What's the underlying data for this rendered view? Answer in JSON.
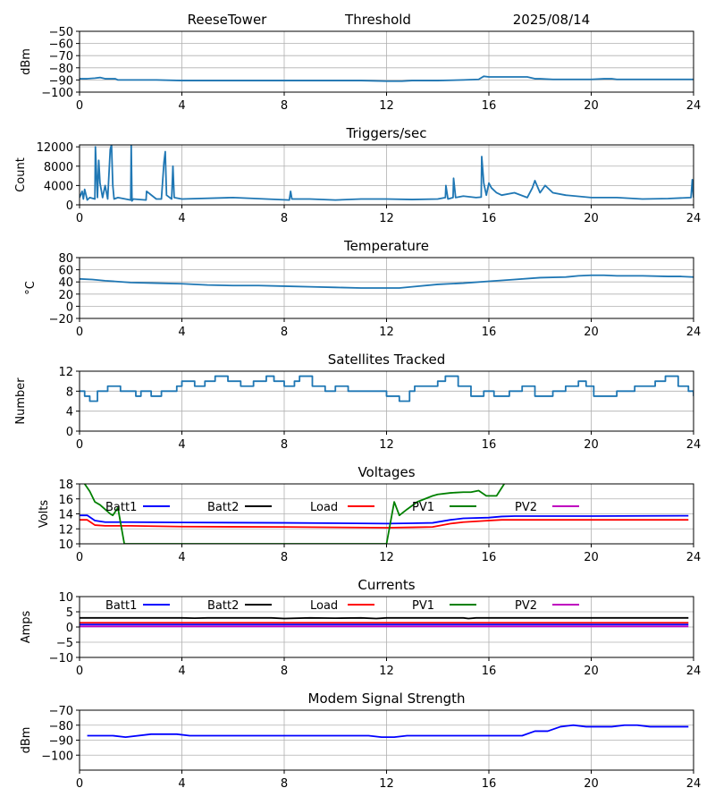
{
  "header": {
    "station": "ReeseTower",
    "mode": "Threshold",
    "date": "2025/08/14"
  },
  "chart_data": [
    {
      "type": "line",
      "name": "signal-threshold",
      "title": "",
      "ylabel": "dBm",
      "xlim": [
        0,
        24
      ],
      "ylim": [
        -100,
        -50
      ],
      "grid": true,
      "xticks": [
        "0",
        "4",
        "8",
        "12",
        "16",
        "20",
        "24"
      ],
      "yticks": [
        "−50",
        "−60",
        "−70",
        "−80",
        "−90",
        "−100"
      ],
      "ytick_values": [
        -50,
        -60,
        -70,
        -80,
        -90,
        -100
      ],
      "series": [
        {
          "name": "Threshold",
          "color": "#1f77b4",
          "x": [
            0,
            0.3,
            0.6,
            0.8,
            1.0,
            1.4,
            1.5,
            2,
            3,
            4,
            6,
            8,
            10,
            11,
            12,
            12.6,
            13,
            14,
            15,
            15.6,
            15.8,
            16,
            16.5,
            17,
            17.5,
            17.8,
            18,
            18.5,
            19,
            19.5,
            20,
            20.5,
            20.8,
            21,
            22,
            23,
            24
          ],
          "y": [
            -89,
            -89,
            -88.5,
            -88,
            -89,
            -89,
            -90,
            -90,
            -90,
            -90.5,
            -90.5,
            -90.5,
            -90.5,
            -90.5,
            -91,
            -91,
            -90.5,
            -90.5,
            -90,
            -89.5,
            -87,
            -87.5,
            -87.5,
            -87.5,
            -87.5,
            -89,
            -89,
            -89.5,
            -89.5,
            -89.5,
            -89.5,
            -89,
            -89,
            -89.5,
            -89.5,
            -89.5,
            -89.5
          ]
        }
      ]
    },
    {
      "type": "line",
      "name": "triggers",
      "title": "Triggers/sec",
      "ylabel": "Count",
      "xlim": [
        0,
        24
      ],
      "ylim": [
        0,
        12400
      ],
      "grid": true,
      "xticks": [
        "0",
        "4",
        "8",
        "12",
        "16",
        "20",
        "24"
      ],
      "yticks": [
        "12000",
        "8000",
        "4000",
        "0"
      ],
      "ytick_values": [
        12000,
        8000,
        4000,
        0
      ],
      "series": [
        {
          "name": "Triggers",
          "color": "#1f77b4",
          "x": [
            0,
            0.1,
            0.15,
            0.2,
            0.3,
            0.4,
            0.6,
            0.62,
            0.7,
            0.75,
            0.8,
            0.9,
            1.0,
            1.1,
            1.2,
            1.25,
            1.3,
            1.35,
            1.5,
            2.0,
            2.02,
            2.05,
            2.1,
            2.6,
            2.62,
            3.0,
            3.2,
            3.3,
            3.35,
            3.4,
            3.6,
            3.65,
            3.7,
            4.0,
            6.0,
            8.2,
            8.25,
            8.3,
            9.0,
            10,
            11,
            12,
            13,
            14,
            14.3,
            14.32,
            14.4,
            14.6,
            14.62,
            14.7,
            15,
            15.5,
            15.7,
            15.72,
            15.8,
            15.9,
            16,
            16.1,
            16.3,
            16.5,
            17,
            17.5,
            17.7,
            17.8,
            18,
            18.2,
            18.5,
            19,
            20,
            20.5,
            21,
            22,
            23,
            23.9,
            23.95,
            24
          ],
          "y": [
            1500,
            2800,
            1200,
            3200,
            1000,
            1500,
            1200,
            12000,
            1500,
            9200,
            4500,
            1500,
            4000,
            1200,
            11500,
            12400,
            4000,
            1200,
            1500,
            1000,
            12400,
            800,
            1200,
            1000,
            2800,
            1200,
            1200,
            8800,
            11000,
            2000,
            1200,
            8000,
            1500,
            1200,
            1500,
            1000,
            2800,
            1200,
            1200,
            1000,
            1200,
            1200,
            1100,
            1200,
            1500,
            4000,
            1200,
            1500,
            5500,
            1500,
            1800,
            1500,
            1600,
            10000,
            4500,
            2000,
            4500,
            3500,
            2500,
            2000,
            2500,
            1500,
            3500,
            5000,
            2500,
            4000,
            2500,
            2000,
            1500,
            1500,
            1500,
            1200,
            1300,
            1500,
            5200,
            1500
          ]
        }
      ]
    },
    {
      "type": "line",
      "name": "temperature",
      "title": "Temperature",
      "ylabel": "°C",
      "xlim": [
        0,
        24
      ],
      "ylim": [
        -20,
        80
      ],
      "grid": true,
      "xticks": [
        "0",
        "4",
        "8",
        "12",
        "16",
        "20",
        "24"
      ],
      "yticks": [
        "80",
        "60",
        "40",
        "20",
        "0",
        "−20"
      ],
      "ytick_values": [
        80,
        60,
        40,
        20,
        0,
        -20
      ],
      "series": [
        {
          "name": "Temperature",
          "color": "#1f77b4",
          "x": [
            0,
            0.5,
            1,
            2,
            3,
            4,
            5,
            6,
            7,
            8,
            9,
            10,
            11,
            12,
            12.5,
            13,
            14,
            15,
            16,
            17,
            18,
            19,
            19.5,
            20,
            20.5,
            21,
            22,
            23,
            23.5,
            24
          ],
          "y": [
            45,
            44,
            42,
            39,
            38,
            37,
            35,
            34,
            34,
            33,
            32,
            31,
            30,
            30,
            30,
            32,
            36,
            38,
            41,
            44,
            47,
            48,
            50,
            51,
            51,
            50,
            50,
            49,
            49,
            48
          ]
        }
      ]
    },
    {
      "type": "line",
      "name": "satellites",
      "title": "Satellites Tracked",
      "ylabel": "Number",
      "xlim": [
        0,
        24
      ],
      "ylim": [
        0,
        12
      ],
      "grid": true,
      "xticks": [
        "0",
        "4",
        "8",
        "12",
        "16",
        "20",
        "24"
      ],
      "yticks": [
        "12",
        "8",
        "4",
        "0"
      ],
      "ytick_values": [
        12,
        8,
        4,
        0
      ],
      "series": [
        {
          "name": "Satellites",
          "color": "#1f77b4",
          "step": true,
          "x": [
            0,
            0.2,
            0.4,
            0.7,
            1.1,
            1.6,
            2.2,
            2.4,
            2.8,
            3.2,
            3.8,
            4.0,
            4.5,
            4.9,
            5.3,
            5.8,
            6.3,
            6.8,
            7.3,
            7.6,
            8.0,
            8.4,
            8.6,
            9.1,
            9.6,
            10.0,
            10.5,
            11.5,
            12.0,
            12.5,
            12.9,
            13.1,
            13.5,
            14.0,
            14.3,
            14.8,
            15.3,
            15.8,
            16.2,
            16.8,
            17.3,
            17.8,
            18.5,
            19.0,
            19.5,
            19.8,
            20.1,
            21.0,
            21.7,
            22.3,
            22.5,
            22.9,
            23.4,
            23.8,
            24
          ],
          "y": [
            8,
            7,
            6,
            8,
            9,
            8,
            7,
            8,
            7,
            8,
            9,
            10,
            9,
            10,
            11,
            10,
            9,
            10,
            11,
            10,
            9,
            10,
            11,
            9,
            8,
            9,
            8,
            8,
            7,
            6,
            8,
            9,
            9,
            10,
            11,
            9,
            7,
            8,
            7,
            8,
            9,
            7,
            8,
            9,
            10,
            9,
            7,
            8,
            9,
            9,
            10,
            11,
            9,
            8,
            7
          ]
        }
      ]
    },
    {
      "type": "line",
      "name": "voltages",
      "title": "Voltages",
      "ylabel": "Volts",
      "xlim": [
        0,
        24
      ],
      "ylim": [
        10,
        18
      ],
      "grid": true,
      "xticks": [
        "0",
        "4",
        "8",
        "12",
        "16",
        "20",
        "24"
      ],
      "yticks": [
        "18",
        "16",
        "14",
        "12",
        "10"
      ],
      "ytick_values": [
        18,
        16,
        14,
        12,
        10
      ],
      "legend": [
        "Batt1",
        "Batt2",
        "Load",
        "PV1",
        "PV2"
      ],
      "series": [
        {
          "name": "Batt1",
          "color": "#0000ff",
          "x": [
            0,
            0.3,
            0.6,
            1,
            2,
            4,
            8,
            12,
            13,
            13.8,
            14.5,
            15,
            16,
            16.5,
            17,
            20,
            23.8
          ],
          "y": [
            13.8,
            13.8,
            13.1,
            12.9,
            12.9,
            12.85,
            12.8,
            12.7,
            12.75,
            12.8,
            13.2,
            13.4,
            13.5,
            13.65,
            13.7,
            13.7,
            13.75
          ]
        },
        {
          "name": "Load",
          "color": "#ff0000",
          "x": [
            0,
            0.3,
            0.6,
            1,
            2,
            4,
            8,
            12,
            13,
            13.8,
            14.5,
            15,
            16,
            16.5,
            17,
            20,
            23.8
          ],
          "y": [
            13.2,
            13.2,
            12.5,
            12.4,
            12.4,
            12.3,
            12.25,
            12.15,
            12.2,
            12.25,
            12.7,
            12.9,
            13.1,
            13.2,
            13.2,
            13.2,
            13.2
          ]
        },
        {
          "name": "PV1",
          "color": "#008000",
          "x": [
            0.2,
            0.4,
            0.6,
            0.8,
            1.0,
            1.2,
            1.3,
            1.5,
            1.75,
            12.0,
            12.3,
            12.5,
            12.8,
            13.2,
            13.8,
            14.0,
            14.5,
            15.0,
            15.3,
            15.6,
            15.9,
            16.3,
            16.6
          ],
          "y": [
            18,
            17,
            15.6,
            15.2,
            14.6,
            14.0,
            13.8,
            14.8,
            10.0,
            10.0,
            15.6,
            13.8,
            14.6,
            15.6,
            16.4,
            16.6,
            16.8,
            16.9,
            16.9,
            17.1,
            16.4,
            16.4,
            18.0
          ]
        },
        {
          "name": "Batt2",
          "color": "#000000",
          "x": [],
          "y": []
        },
        {
          "name": "PV2",
          "color": "#bf00bf",
          "x": [],
          "y": []
        }
      ]
    },
    {
      "type": "line",
      "name": "currents",
      "title": "Currents",
      "ylabel": "Amps",
      "xlim": [
        0,
        24
      ],
      "ylim": [
        -10,
        10
      ],
      "grid": true,
      "xticks": [
        "0",
        "4",
        "8",
        "12",
        "16",
        "20",
        "24"
      ],
      "yticks": [
        "10",
        "5",
        "0",
        "−5",
        "−10"
      ],
      "ytick_values": [
        10,
        5,
        0,
        -5,
        -10
      ],
      "legend": [
        "Batt1",
        "Batt2",
        "Load",
        "PV1",
        "PV2"
      ],
      "series": [
        {
          "name": "Batt2",
          "color": "#000000",
          "x": [
            0,
            4,
            4.5,
            5,
            7.5,
            8,
            9,
            10,
            11,
            11.6,
            12,
            15,
            15.2,
            15.5,
            23.8
          ],
          "y": [
            3,
            3,
            2.9,
            3,
            3,
            2.8,
            3,
            2.9,
            3,
            2.8,
            3,
            3,
            2.8,
            3,
            3
          ]
        },
        {
          "name": "Load",
          "color": "#ff0000",
          "x": [
            0,
            23.8
          ],
          "y": [
            1.4,
            1.4
          ]
        },
        {
          "name": "Batt1",
          "color": "#0000ff",
          "x": [
            0,
            23.8
          ],
          "y": [
            0.8,
            0.8
          ]
        },
        {
          "name": "PV2",
          "color": "#bf00bf",
          "x": [
            0,
            23.8
          ],
          "y": [
            0.2,
            0.2
          ]
        },
        {
          "name": "PV1",
          "color": "#008000",
          "x": [],
          "y": []
        }
      ]
    },
    {
      "type": "line",
      "name": "modem-signal",
      "title": "Modem Signal Strength",
      "ylabel": "dBm",
      "xlim": [
        0,
        24
      ],
      "ylim": [
        -110,
        -70
      ],
      "grid": true,
      "xticks": [
        "0",
        "4",
        "8",
        "12",
        "16",
        "20",
        "24"
      ],
      "yticks": [
        "−70",
        "−80",
        "−90",
        "−100"
      ],
      "ytick_values": [
        -70,
        -80,
        -90,
        -100
      ],
      "series": [
        {
          "name": "Modem",
          "color": "#0000ff",
          "x": [
            0.3,
            1.3,
            1.8,
            2.8,
            3.8,
            4.3,
            11.3,
            11.8,
            12.3,
            12.8,
            17.3,
            17.8,
            18.3,
            18.8,
            19.3,
            19.8,
            20.8,
            21.3,
            21.8,
            22.3,
            23.8
          ],
          "y": [
            -87,
            -87,
            -88,
            -86,
            -86,
            -87,
            -87,
            -88,
            -88,
            -87,
            -87,
            -84,
            -84,
            -81,
            -80,
            -81,
            -81,
            -80,
            -80,
            -81,
            -81
          ]
        }
      ]
    }
  ]
}
